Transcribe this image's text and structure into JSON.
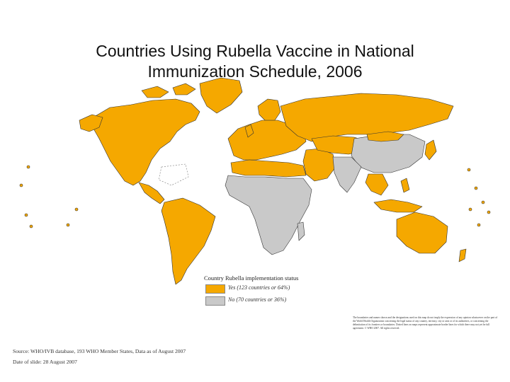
{
  "title": {
    "line1": "Countries Using Rubella Vaccine in National",
    "line2": "Immunization Schedule, 2006"
  },
  "legend": {
    "title": "Country Rubella implementation status",
    "items": [
      {
        "label": "Yes (123 countries or 64%)",
        "color": "#f5a800"
      },
      {
        "label": "No (70 countries or 36%)",
        "color": "#c9c9c9"
      }
    ]
  },
  "disclaimer": "The boundaries and names shown and the designations used on this map do not imply the expression of any opinion whatsoever on the part of the World Health Organization concerning the legal status of any country, territory, city or area or of its authorities, or concerning the delimitation of its frontiers or boundaries. Dotted lines on maps represent approximate border lines for which there may not yet be full agreement. © WHO 2007. All rights reserved.",
  "source": "Source: WHO/IVB database, 193 WHO Member States, Data as of August 2007",
  "date": "Date of slide: 28 August 2007",
  "colors": {
    "yes": "#f5a800",
    "no": "#c9c9c9",
    "border": "#333333"
  }
}
